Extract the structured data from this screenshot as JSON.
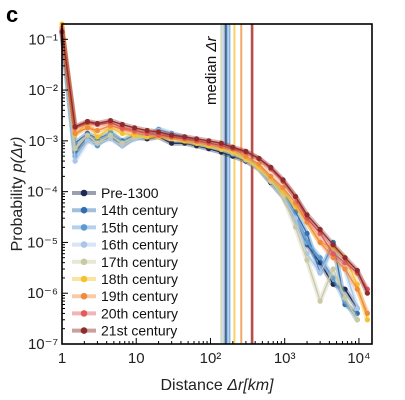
{
  "chart_data": {
    "type": "line",
    "panel_label": "c",
    "xlabel_plain": "Distance ",
    "xlabel_italic": "Δr[km]",
    "ylabel_plain": "Probability ",
    "ylabel_italic": "p(Δr)",
    "x_scale": "log",
    "y_scale": "log",
    "xlim": [
      1,
      15000
    ],
    "ylim": [
      1e-07,
      0.2
    ],
    "x_ticks": [
      {
        "value": 1,
        "label": "1"
      },
      {
        "value": 10,
        "label": "10"
      },
      {
        "value": 100,
        "label": "10²"
      },
      {
        "value": 1000,
        "label": "10³"
      },
      {
        "value": 10000,
        "label": "10⁴"
      }
    ],
    "y_ticks": [
      {
        "value": 0.1,
        "label": "10⁻¹"
      },
      {
        "value": 0.01,
        "label": "10⁻²"
      },
      {
        "value": 0.001,
        "label": "10⁻³"
      },
      {
        "value": 0.0001,
        "label": "10⁻⁴"
      },
      {
        "value": 1e-05,
        "label": "10⁻⁵"
      },
      {
        "value": 1e-06,
        "label": "10⁻⁶"
      },
      {
        "value": 1e-07,
        "label": "10⁻⁷"
      }
    ],
    "grid": false,
    "legend_position": "bottom-left",
    "median_label_plain": "median ",
    "median_label_italic": "Δr",
    "x": [
      1,
      1.5,
      2.2,
      3,
      4.5,
      6.5,
      9.5,
      14,
      20,
      30,
      45,
      65,
      95,
      140,
      200,
      300,
      450,
      650,
      950,
      1400,
      2000,
      3000,
      4500,
      6500,
      9500,
      13000
    ],
    "series": [
      {
        "name": "Pre-1300",
        "color": "#1c2a4f",
        "median": 160,
        "values": [
          0.13,
          0.0006,
          0.0012,
          0.0009,
          0.0012,
          0.0008,
          0.0012,
          0.0011,
          0.0012,
          0.0009,
          0.0009,
          0.0008,
          0.0007,
          0.0006,
          0.0005,
          0.0004,
          0.00028,
          0.00015,
          8e-05,
          3e-05,
          9e-06,
          4e-06,
          1.5e-06,
          1.2e-06,
          5e-07,
          null
        ]
      },
      {
        "name": "14th century",
        "color": "#2f6fb0",
        "median": 165,
        "values": [
          0.14,
          0.0009,
          0.0014,
          0.0011,
          0.0014,
          0.001,
          0.0013,
          0.0013,
          0.0015,
          0.0012,
          0.0011,
          0.0009,
          0.0008,
          0.0007,
          0.0006,
          0.00045,
          0.0003,
          0.00018,
          0.0001,
          4e-05,
          1.5e-05,
          2.5e-06,
          1e-05,
          6e-07,
          4e-07,
          null
        ]
      },
      {
        "name": "15th century",
        "color": "#5b9bd5",
        "median": 180,
        "values": [
          0.13,
          0.0005,
          0.0011,
          0.0008,
          0.0015,
          0.0009,
          0.0011,
          0.0012,
          0.0017,
          0.0014,
          0.0012,
          0.0009,
          0.0008,
          0.0007,
          0.00055,
          0.00045,
          0.0003,
          0.00017,
          9e-05,
          3e-05,
          1e-05,
          5e-06,
          2e-06,
          7e-07,
          3e-07,
          null
        ]
      },
      {
        "name": "16th century",
        "color": "#a9c6e8",
        "median": 150,
        "values": [
          0.13,
          0.0004,
          0.001,
          0.0009,
          0.0011,
          0.0008,
          0.0011,
          0.0012,
          0.0016,
          0.0013,
          0.0011,
          0.0009,
          0.0008,
          0.0007,
          0.0006,
          0.00045,
          0.0003,
          0.00016,
          8e-05,
          3e-05,
          6e-06,
          2.5e-06,
          8e-06,
          3e-06,
          5e-07,
          null
        ]
      },
      {
        "name": "17th century",
        "color": "#c9c9a6",
        "median": 140,
        "values": [
          0.14,
          0.0007,
          0.0013,
          0.0009,
          0.0013,
          0.0009,
          0.0012,
          0.0012,
          0.0014,
          0.0012,
          0.001,
          0.0009,
          0.0008,
          0.00068,
          0.00058,
          0.00042,
          0.00028,
          0.00016,
          8e-05,
          2e-05,
          4.5e-06,
          7e-07,
          3e-06,
          8e-07,
          3e-07,
          null
        ]
      },
      {
        "name": "18th century",
        "color": "#f4c430",
        "median": 210,
        "values": [
          0.2,
          0.0013,
          0.0023,
          0.0012,
          0.0018,
          0.0014,
          0.0013,
          0.0012,
          0.0012,
          0.0011,
          0.001,
          0.0009,
          0.0008,
          0.0007,
          0.0006,
          0.00045,
          0.0003,
          0.00018,
          0.0001,
          5e-05,
          2.5e-05,
          1e-05,
          8e-06,
          5e-06,
          1.5e-06,
          3e-07
        ]
      },
      {
        "name": "19th century",
        "color": "#f08a3c",
        "median": 260,
        "values": [
          0.17,
          0.0014,
          0.0018,
          0.0016,
          0.002,
          0.0017,
          0.0015,
          0.0014,
          0.0013,
          0.0012,
          0.0011,
          0.001,
          0.0009,
          0.0008,
          0.0007,
          0.0005,
          0.00035,
          0.0002,
          0.00012,
          6e-05,
          2.5e-05,
          1e-05,
          5e-06,
          3e-06,
          1.2e-06,
          4e-07
        ]
      },
      {
        "name": "20th century",
        "color": "#e35a5a",
        "median": 370,
        "values": [
          0.15,
          0.0018,
          0.0023,
          0.0021,
          0.0023,
          0.0018,
          0.0016,
          0.0014,
          0.0013,
          0.0012,
          0.0011,
          0.001,
          0.0009,
          0.0008,
          0.0007,
          0.0006,
          0.00045,
          0.00028,
          0.00016,
          8e-05,
          3e-05,
          1.5e-05,
          6e-06,
          4e-06,
          2.5e-06,
          1.2e-06
        ]
      },
      {
        "name": "21st century",
        "color": "#8e2b2b",
        "median": 360,
        "values": [
          0.14,
          0.0019,
          0.0024,
          0.0022,
          0.0025,
          0.0021,
          0.0018,
          0.0016,
          0.0015,
          0.0013,
          0.0012,
          0.0011,
          0.001,
          0.0009,
          0.00075,
          0.00062,
          0.00045,
          0.0003,
          0.00017,
          8e-05,
          3.5e-05,
          1.8e-05,
          9e-06,
          5e-06,
          2.8e-06,
          1e-06
        ]
      }
    ]
  }
}
